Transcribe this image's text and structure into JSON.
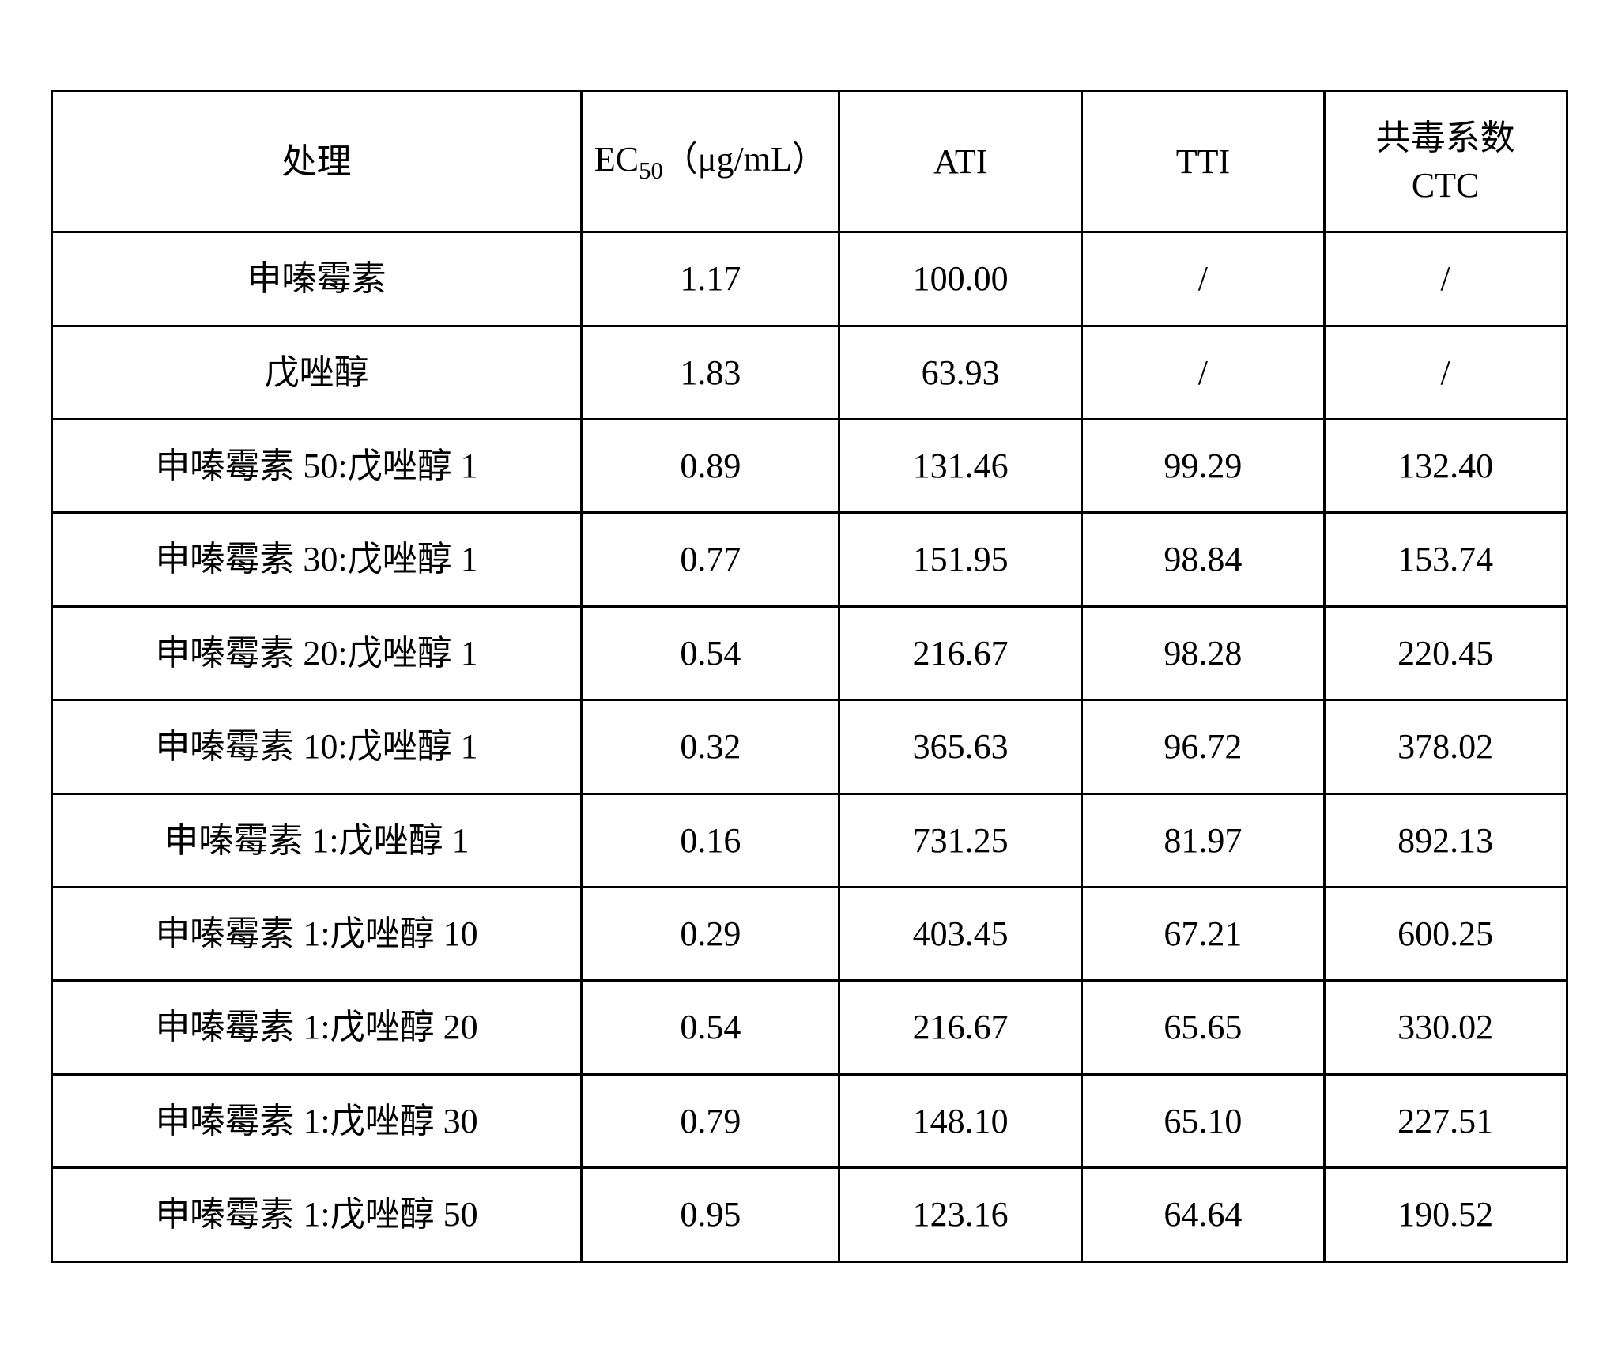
{
  "table": {
    "type": "table",
    "border_color": "#000000",
    "background_color": "#ffffff",
    "text_color": "#000000",
    "font_family": "SimSun / Times New Roman serif",
    "base_fontsize_pt": 33,
    "column_widths_pct": [
      35,
      17,
      16,
      16,
      16
    ],
    "columns": {
      "treatment": "处理",
      "ec50_prefix": "EC",
      "ec50_sub": "50",
      "ec50_suffix": "（μg/mL）",
      "ati": "ATI",
      "tti": "TTI",
      "ctc_line1": "共毒系数",
      "ctc_line2": "CTC"
    },
    "rows": [
      {
        "treatment": "申嗪霉素",
        "ec50": "1.17",
        "ati": "100.00",
        "tti": "/",
        "ctc": "/"
      },
      {
        "treatment": "戊唑醇",
        "ec50": "1.83",
        "ati": "63.93",
        "tti": "/",
        "ctc": "/"
      },
      {
        "treatment": "申嗪霉素 50:戊唑醇 1",
        "ec50": "0.89",
        "ati": "131.46",
        "tti": "99.29",
        "ctc": "132.40"
      },
      {
        "treatment": "申嗪霉素 30:戊唑醇 1",
        "ec50": "0.77",
        "ati": "151.95",
        "tti": "98.84",
        "ctc": "153.74"
      },
      {
        "treatment": "申嗪霉素 20:戊唑醇 1",
        "ec50": "0.54",
        "ati": "216.67",
        "tti": "98.28",
        "ctc": "220.45"
      },
      {
        "treatment": "申嗪霉素 10:戊唑醇 1",
        "ec50": "0.32",
        "ati": "365.63",
        "tti": "96.72",
        "ctc": "378.02"
      },
      {
        "treatment": "申嗪霉素 1:戊唑醇 1",
        "ec50": "0.16",
        "ati": "731.25",
        "tti": "81.97",
        "ctc": "892.13"
      },
      {
        "treatment": "申嗪霉素 1:戊唑醇 10",
        "ec50": "0.29",
        "ati": "403.45",
        "tti": "67.21",
        "ctc": "600.25"
      },
      {
        "treatment": "申嗪霉素 1:戊唑醇 20",
        "ec50": "0.54",
        "ati": "216.67",
        "tti": "65.65",
        "ctc": "330.02"
      },
      {
        "treatment": "申嗪霉素 1:戊唑醇 30",
        "ec50": "0.79",
        "ati": "148.10",
        "tti": "65.10",
        "ctc": "227.51"
      },
      {
        "treatment": "申嗪霉素 1:戊唑醇 50",
        "ec50": "0.95",
        "ati": "123.16",
        "tti": "64.64",
        "ctc": "190.52"
      }
    ]
  }
}
